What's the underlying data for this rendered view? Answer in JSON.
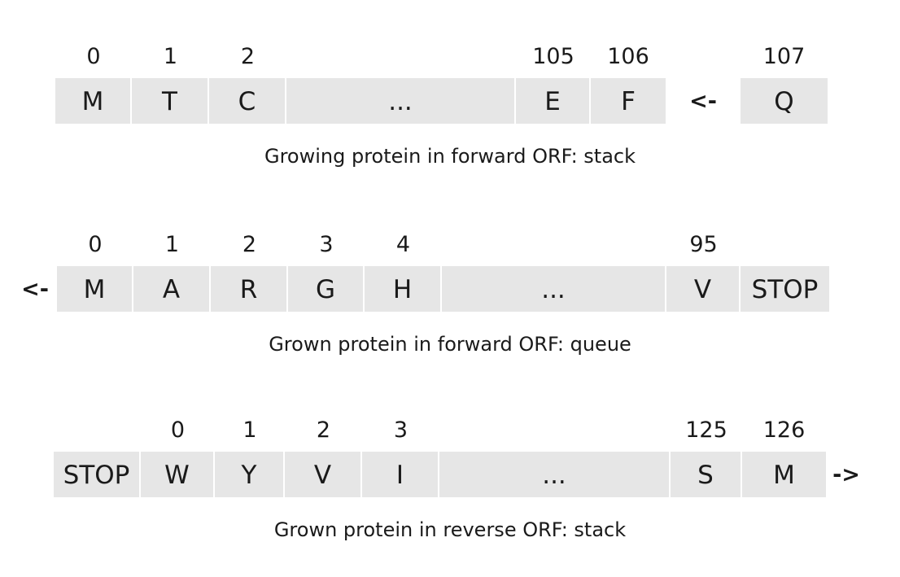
{
  "diagrams": [
    {
      "indices": [
        "0",
        "1",
        "2",
        "",
        "105",
        "106",
        "107"
      ],
      "cells": [
        "M",
        "T",
        "C",
        "...",
        "E",
        "F",
        "Q"
      ],
      "arrow": "<-",
      "caption": "Growing protein in forward ORF: stack"
    },
    {
      "indices": [
        "0",
        "1",
        "2",
        "3",
        "4",
        "",
        "95"
      ],
      "cells": [
        "M",
        "A",
        "R",
        "G",
        "H",
        "...",
        "V",
        "STOP"
      ],
      "arrow": "<-",
      "caption": "Grown protein in forward ORF: queue"
    },
    {
      "indices": [
        "0",
        "1",
        "2",
        "3",
        "",
        "125",
        "126"
      ],
      "cells": [
        "STOP",
        "W",
        "Y",
        "V",
        "I",
        "...",
        "S",
        "M"
      ],
      "arrow": "->",
      "caption": "Grown protein in reverse ORF: stack"
    }
  ]
}
